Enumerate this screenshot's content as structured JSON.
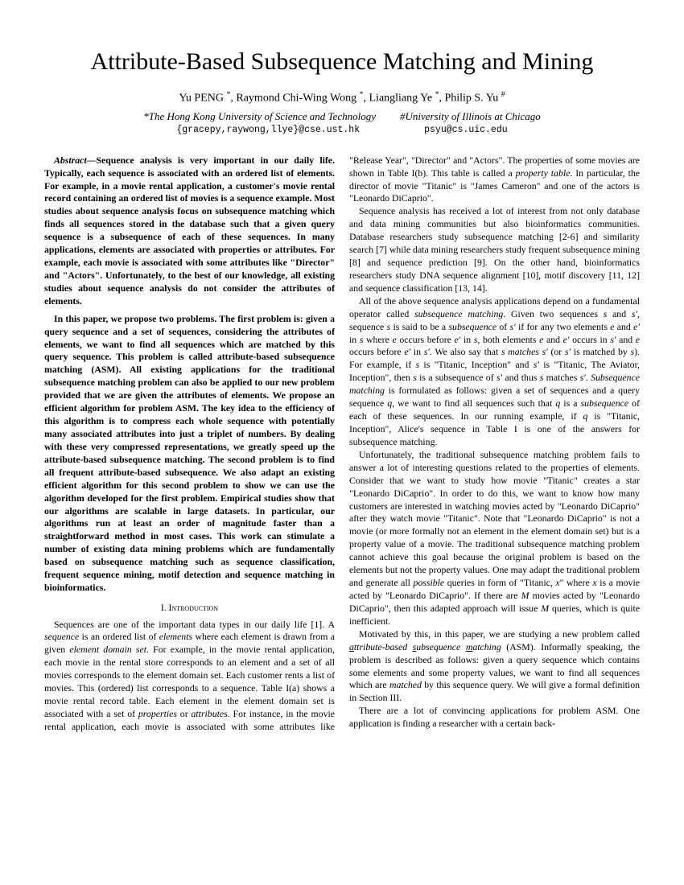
{
  "title": "Attribute-Based Subsequence Matching and Mining",
  "authors": "Yu PENG *, Raymond Chi-Wing Wong *, Liangliang Ye *, Philip S. Yu #",
  "affiliation1": "*The Hong Kong University of Science and Technology",
  "affiliation2": "#University of Illinois at Chicago",
  "email1": "{gracepy,raywong,llye}@cse.ust.hk",
  "email2": "psyu@cs.uic.edu",
  "abstract_label": "Abstract—",
  "abstract_p1": "Sequence analysis is very important in our daily life. Typically, each sequence is associated with an ordered list of elements. For example, in a movie rental application, a customer's movie rental record containing an ordered list of movies is a sequence example. Most studies about sequence analysis focus on subsequence matching which finds all sequences stored in the database such that a given query sequence is a subsequence of each of these sequences. In many applications, elements are associated with properties or attributes. For example, each movie is associated with some attributes like \"Director\" and \"Actors\". Unfortunately, to the best of our knowledge, all existing studies about sequence analysis do not consider the attributes of elements.",
  "abstract_p2": "In this paper, we propose two problems. The first problem is: given a query sequence and a set of sequences, considering the attributes of elements, we want to find all sequences which are matched by this query sequence. This problem is called attribute-based subsequence matching (ASM). All existing applications for the traditional subsequence matching problem can also be applied to our new problem provided that we are given the attributes of elements. We propose an efficient algorithm for problem ASM. The key idea to the efficiency of this algorithm is to compress each whole sequence with potentially many associated attributes into just a triplet of numbers. By dealing with these very compressed representations, we greatly speed up the attribute-based subsequence matching. The second problem is to find all frequent attribute-based subsequence. We also adapt an existing efficient algorithm for this second problem to show we can use the algorithm developed for the first problem. Empirical studies show that our algorithms are scalable in large datasets. In particular, our algorithms run at least an order of magnitude faster than a straightforward method in most cases. This work can stimulate a number of existing data mining problems which are fundamentally based on subsequence matching such as sequence classification, frequent sequence mining, motif detection and sequence matching in bioinformatics.",
  "section1_heading": "I. Introduction",
  "intro_p1": "Sequences are one of the important data types in our daily life [1]. A sequence is an ordered list of elements where each element is drawn from a given element domain set. For example, in the movie rental application, each movie in the rental store corresponds to an element and a set of all movies corresponds to the element domain set. Each customer rents a list of movies. This (ordered) list corresponds to a sequence. Table I(a) shows a movie rental record table. Each element in the element domain set is associated with a set of properties or attributes. For instance, in the movie rental application, each movie is associated with some attributes like \"Release Year\", \"Director\" and \"Actors\". The properties of some movies are shown in Table I(b). This table is called a property table. In particular, the director of movie \"Titanic\" is \"James Cameron\" and one of the actors is \"Leonardo DiCaprio\".",
  "col2_p1": "Sequence analysis has received a lot of interest from not only database and data mining communities but also bioinformatics communities. Database researchers study subsequence matching [2-6] and similarity search [7] while data mining researchers study frequent subsequence mining [8] and sequence prediction [9]. On the other hand, bioinformatics researchers study DNA sequence alignment [10], motif discovery [11, 12] and sequence classification [13, 14].",
  "col2_p2": "All of the above sequence analysis applications depend on a fundamental operator called subsequence matching. Given two sequences s and s′, sequence s is said to be a subsequence of s′ if for any two elements e and e′ in s where e occurs before e′ in s, both elements e and e′ occurs in s′ and e occurs before e′ in s′. We also say that s matches s′ (or s′ is matched by s). For example, if s is \"Titanic, Inception\" and s′ is \"Titanic, The Aviator, Inception\", then s is a subsequence of s′ and thus s matches s′. Subsequence matching is formulated as follows: given a set of sequences and a query sequence q, we want to find all sequences such that q is a subsequence of each of these sequences. In our running example, if q is \"Titanic, Inception\", Alice's sequence in Table I is one of the answers for subsequence matching.",
  "col2_p3": "Unfortunately, the traditional subsequence matching problem fails to answer a lot of interesting questions related to the properties of elements. Consider that we want to study how movie \"Titanic\" creates a star \"Leonardo DiCaprio\". In order to do this, we want to know how many customers are interested in watching movies acted by \"Leonardo DiCaprio\" after they watch movie \"Titanic\". Note that \"Leonardo DiCaprio\" is not a movie (or more formally not an element in the element domain set) but is a property value of a movie. The traditional subsequence matching problem cannot achieve this goal because the original problem is based on the elements but not the property values. One may adapt the traditional problem and generate all possible queries in form of \"Titanic, x\" where x is a movie acted by \"Leonardo DiCaprio\". If there are M movies acted by \"Leonardo DiCaprio\", then this adapted approach will issue M queries, which is quite inefficient.",
  "col2_p4": "Motivated by this, in this paper, we are studying a new problem called attribute-based subsequence matching (ASM). Informally speaking, the problem is described as follows: given a query sequence which contains some elements and some property values, we want to find all sequences which are matched by this sequence query. We will give a formal definition in Section III.",
  "col2_p5": "There are a lot of convincing applications for problem ASM. One application is finding a researcher with a certain back-"
}
